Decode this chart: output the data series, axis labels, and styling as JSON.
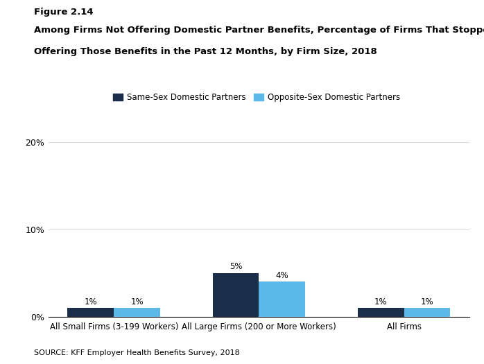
{
  "figure_label": "Figure 2.14",
  "title_line1": "Among Firms Not Offering Domestic Partner Benefits, Percentage of Firms That Stopped",
  "title_line2": "Offering Those Benefits in the Past 12 Months, by Firm Size, 2018",
  "categories": [
    "All Small Firms (3-199 Workers)",
    "All Large Firms (200 or More Workers)",
    "All Firms"
  ],
  "same_sex": [
    1,
    5,
    1
  ],
  "opposite_sex": [
    1,
    4,
    1
  ],
  "same_sex_color": "#1a2e4a",
  "opposite_sex_color": "#5bb8e8",
  "legend_labels": [
    "Same-Sex Domestic Partners",
    "Opposite-Sex Domestic Partners"
  ],
  "ylim": [
    0,
    20
  ],
  "yticks": [
    0,
    10,
    20
  ],
  "ytick_labels": [
    "0%",
    "10%",
    "20%"
  ],
  "bar_width": 0.32,
  "source_text": "SOURCE: KFF Employer Health Benefits Survey, 2018",
  "background_color": "#ffffff"
}
